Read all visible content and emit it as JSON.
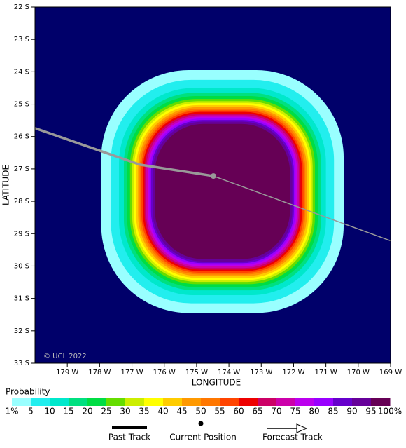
{
  "chart_data": {
    "type": "probability_map",
    "xlabel": "LONGITUDE",
    "ylabel": "LATITUDE",
    "copyright": "© UCL 2022",
    "background": "#00006a",
    "xlim": [
      180,
      169
    ],
    "ylim": [
      22,
      33
    ],
    "xticks": [
      {
        "value": 179,
        "label": "179 W"
      },
      {
        "value": 178,
        "label": "178 W"
      },
      {
        "value": 177,
        "label": "177 W"
      },
      {
        "value": 176,
        "label": "176 W"
      },
      {
        "value": 175,
        "label": "175 W"
      },
      {
        "value": 174,
        "label": "174 W"
      },
      {
        "value": 173,
        "label": "173 W"
      },
      {
        "value": 172,
        "label": "172 W"
      },
      {
        "value": 171,
        "label": "171 W"
      },
      {
        "value": 170,
        "label": "170 W"
      },
      {
        "value": 169,
        "label": "169 W"
      }
    ],
    "yticks": [
      {
        "value": 22,
        "label": "22 S"
      },
      {
        "value": 23,
        "label": "23 S"
      },
      {
        "value": 24,
        "label": "24 S"
      },
      {
        "value": 25,
        "label": "25 S"
      },
      {
        "value": 26,
        "label": "26 S"
      },
      {
        "value": 27,
        "label": "27 S"
      },
      {
        "value": 28,
        "label": "28 S"
      },
      {
        "value": 29,
        "label": "29 S"
      },
      {
        "value": 30,
        "label": "30 S"
      },
      {
        "value": 31,
        "label": "31 S"
      },
      {
        "value": 32,
        "label": "32 S"
      },
      {
        "value": 33,
        "label": "33 S"
      }
    ],
    "field": {
      "center_lon": 174.2,
      "center_lat": 27.7,
      "radii_deg": [
        3.75,
        3.45,
        3.2,
        3.05,
        2.95,
        2.86,
        2.79,
        2.73,
        2.67,
        2.61,
        2.56,
        2.51,
        2.46,
        2.41,
        2.36,
        2.31,
        2.26,
        2.21,
        2.16,
        2.09
      ]
    },
    "probability": {
      "title": "Probability",
      "levels": [
        {
          "value": 1,
          "label": "1%"
        },
        5,
        10,
        15,
        20,
        25,
        30,
        35,
        40,
        45,
        50,
        55,
        60,
        65,
        70,
        75,
        80,
        85,
        90,
        95,
        {
          "value": 100,
          "label": "100%"
        }
      ],
      "colors": [
        "#99ffff",
        "#22eeee",
        "#00e8cc",
        "#00e080",
        "#00dd44",
        "#66dd00",
        "#ccee00",
        "#ffff00",
        "#ffcc00",
        "#ff9900",
        "#ff7700",
        "#ff4400",
        "#ee0000",
        "#cc0066",
        "#cc00aa",
        "#bb00ee",
        "#9900ff",
        "#6600cc",
        "#660099",
        "#660055"
      ]
    },
    "series": [
      {
        "name": "Past Track",
        "color": "#999999",
        "lon": [
          180,
          176.75,
          174.48
        ],
        "lat": [
          25.74,
          26.87,
          27.22
        ]
      },
      {
        "name": "Forecast Track",
        "color": "#999999",
        "lon": [
          174.48,
          169
        ],
        "lat": [
          27.22,
          29.22
        ]
      }
    ],
    "current_position": {
      "name": "Current Position",
      "lon": 174.48,
      "lat": 27.22
    }
  }
}
